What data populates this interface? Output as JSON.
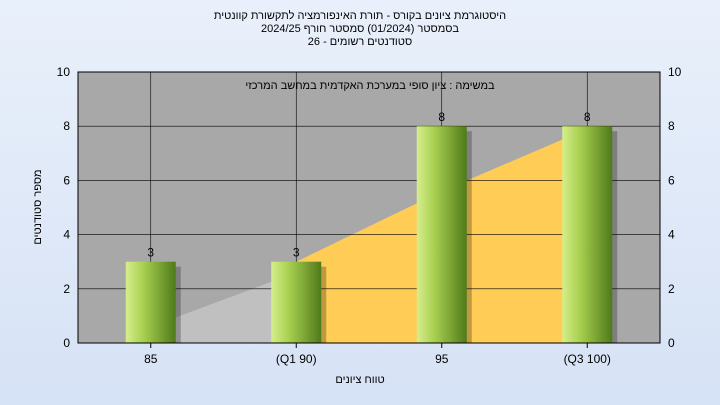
{
  "title_lines": [
    "היסטוגרמת ציונים בקורס - תורת האינפורמציה לתקשורת קוונטית",
    "בסמסטר   (01/2024)   סמסטר חורף 2024/25",
    "סטודנטים רשומים - 26"
  ],
  "chart_data": {
    "type": "bar",
    "categories": [
      "85",
      "(Q1 90)",
      "95",
      "(Q3 100)"
    ],
    "values": [
      3,
      3,
      8,
      8
    ],
    "value_labels": [
      "3",
      "3",
      "8",
      "8"
    ],
    "ylabel": "מספר סטודנטים",
    "xlabel": "טווח ציונים",
    "annotation": "במשימה : ציון סופי במערכת האקדמית במחשב המרכזי",
    "ylim": [
      0,
      10
    ],
    "yticks": [
      "0",
      "2",
      "4",
      "6",
      "8",
      "10"
    ],
    "grid": true,
    "background_series": [
      {
        "fill": "#c0c0c0",
        "x": [
          0,
          1
        ],
        "values": [
          0.6,
          2.6
        ]
      },
      {
        "fill": "#ffcc55",
        "x": [
          1,
          2,
          3
        ],
        "values": [
          3,
          5.6,
          7.9
        ]
      }
    ],
    "colors": {
      "plot_bg": "#a8a8a8",
      "bar_light": "#d6ee8c",
      "bar_dark": "#4f7a1a"
    }
  }
}
